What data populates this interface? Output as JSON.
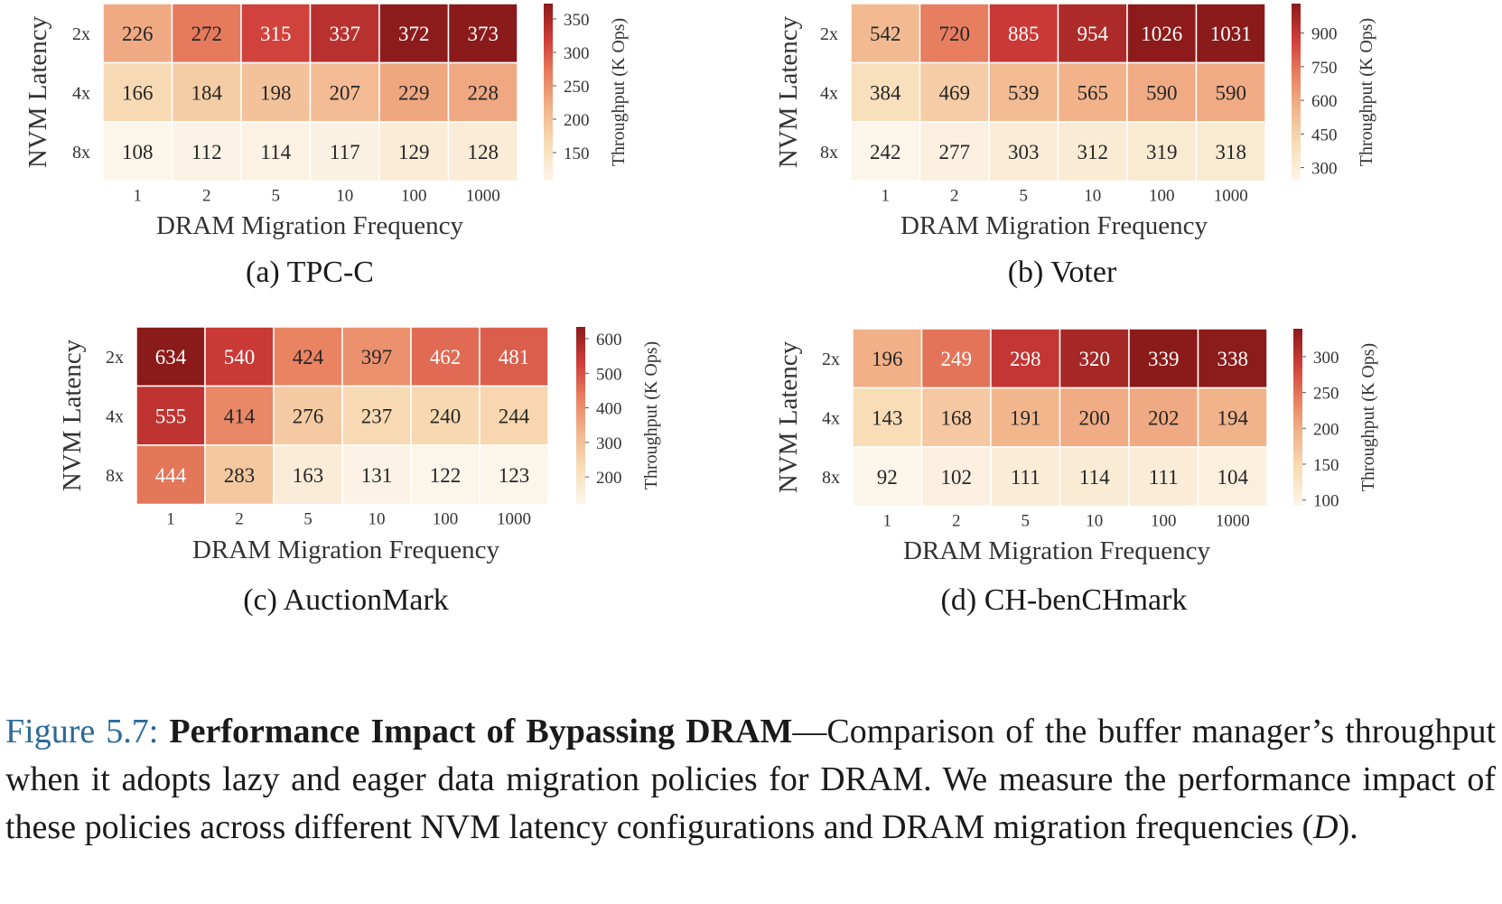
{
  "chart_data": [
    {
      "type": "heatmap",
      "caption": "(a) TPC-C",
      "xlabel": "DRAM Migration Frequency",
      "ylabel": "NVM Latency",
      "colorbar_label": "Throughput (K Ops)",
      "x_categories": [
        "1",
        "2",
        "5",
        "10",
        "100",
        "1000"
      ],
      "y_categories": [
        "2x",
        "4x",
        "8x"
      ],
      "values": [
        [
          226,
          272,
          315,
          337,
          372,
          373
        ],
        [
          166,
          184,
          198,
          207,
          229,
          228
        ],
        [
          108,
          112,
          114,
          117,
          129,
          128
        ]
      ],
      "colorbar_ticks": [
        150,
        200,
        250,
        300,
        350
      ],
      "colorbar_range": [
        108,
        373
      ]
    },
    {
      "type": "heatmap",
      "caption": "(b) Voter",
      "xlabel": "DRAM Migration Frequency",
      "ylabel": "NVM Latency",
      "colorbar_label": "Throughput (K Ops)",
      "x_categories": [
        "1",
        "2",
        "5",
        "10",
        "100",
        "1000"
      ],
      "y_categories": [
        "2x",
        "4x",
        "8x"
      ],
      "values": [
        [
          542,
          720,
          885,
          954,
          1026,
          1031
        ],
        [
          384,
          469,
          539,
          565,
          590,
          590
        ],
        [
          242,
          277,
          303,
          312,
          319,
          318
        ]
      ],
      "colorbar_ticks": [
        300,
        450,
        600,
        750,
        900
      ],
      "colorbar_range": [
        242,
        1031
      ]
    },
    {
      "type": "heatmap",
      "caption": "(c) AuctionMark",
      "xlabel": "DRAM Migration Frequency",
      "ylabel": "NVM Latency",
      "colorbar_label": "Throughput (K Ops)",
      "x_categories": [
        "1",
        "2",
        "5",
        "10",
        "100",
        "1000"
      ],
      "y_categories": [
        "2x",
        "4x",
        "8x"
      ],
      "values": [
        [
          634,
          540,
          424,
          397,
          462,
          481
        ],
        [
          555,
          414,
          276,
          237,
          240,
          244
        ],
        [
          444,
          283,
          163,
          131,
          122,
          123
        ]
      ],
      "colorbar_ticks": [
        200,
        300,
        400,
        500,
        600
      ],
      "colorbar_range": [
        122,
        634
      ]
    },
    {
      "type": "heatmap",
      "caption": "(d) CH-benCHmark",
      "xlabel": "DRAM Migration Frequency",
      "ylabel": "NVM Latency",
      "colorbar_label": "Throughput (K Ops)",
      "x_categories": [
        "1",
        "2",
        "5",
        "10",
        "100",
        "1000"
      ],
      "y_categories": [
        "2x",
        "4x",
        "8x"
      ],
      "values": [
        [
          196,
          249,
          298,
          320,
          339,
          338
        ],
        [
          143,
          168,
          191,
          200,
          202,
          194
        ],
        [
          92,
          102,
          111,
          114,
          111,
          104
        ]
      ],
      "colorbar_ticks": [
        100,
        150,
        200,
        250,
        300
      ],
      "colorbar_range": [
        92,
        339
      ]
    }
  ],
  "colors": {
    "colormap": [
      "#fcf5ea",
      "#f8deb8",
      "#f2b68d",
      "#e88060",
      "#cf3c38",
      "#8b1a1a"
    ],
    "caption_label": "#2a6a9a"
  },
  "caption": {
    "label": "Figure 5.7:",
    "title": "Performance Impact of Bypassing DRAM",
    "text_1": "—Comparison of the buffer manager’s throughput when it adopts lazy and eager data migration policies for DRAM. We measure the performance impact of these policies across different NVM latency configurations and DRAM migration frequencies (",
    "symbol": "D",
    "text_2": ")."
  }
}
